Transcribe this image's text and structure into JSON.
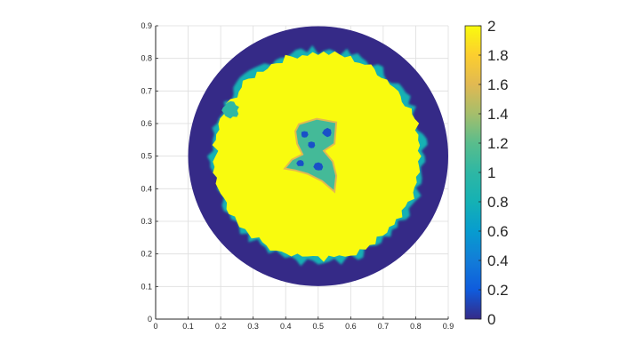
{
  "chart_data": {
    "type": "heatmap",
    "title": "",
    "xlabel": "",
    "ylabel": "",
    "xlim": [
      0,
      0.9
    ],
    "ylim": [
      0,
      0.9
    ],
    "grid": true,
    "x_ticks": [
      "0",
      "0.1",
      "0.2",
      "0.3",
      "0.4",
      "0.5",
      "0.6",
      "0.7",
      "0.8",
      "0.9"
    ],
    "y_ticks": [
      "0",
      "0.1",
      "0.2",
      "0.3",
      "0.4",
      "0.5",
      "0.6",
      "0.7",
      "0.8",
      "0.9"
    ],
    "colormap": "parula",
    "colorbar": {
      "range": [
        0,
        2
      ],
      "ticks": [
        "0",
        "0.2",
        "0.4",
        "0.6",
        "0.8",
        "1",
        "1.2",
        "1.4",
        "1.6",
        "1.8",
        "2"
      ],
      "placement": "right"
    },
    "domain": {
      "shape": "disk",
      "center": [
        0.5,
        0.5
      ],
      "radius": 0.4
    },
    "regions": [
      {
        "value": 0,
        "description": "outer ring of the disk",
        "r_min": 0.32,
        "r_max": 0.4
      },
      {
        "value": 2,
        "description": "yellow annulus",
        "r_min": 0.1,
        "r_max": 0.32
      },
      {
        "value": 1,
        "description": "irregular central patch",
        "center": [
          0.49,
          0.5
        ],
        "r_max": 0.1
      },
      {
        "value": 1,
        "description": "small patch on upper-left edge",
        "center": [
          0.23,
          0.64
        ]
      }
    ],
    "colors": {
      "low": "#352a87",
      "mid": "#2eb7a4",
      "high": "#f9fb0e"
    }
  }
}
